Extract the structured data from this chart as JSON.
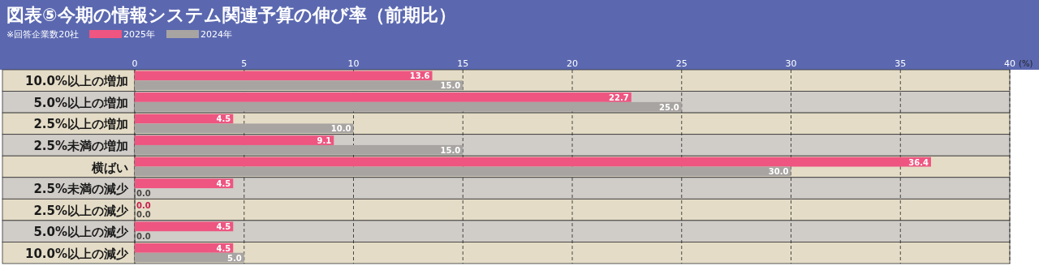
{
  "chart_data": {
    "type": "bar",
    "orientation": "horizontal",
    "title": "図表⑤今期の情報システム関連予算の伸び率（前期比）",
    "subtitle": "※回答企業数20社",
    "xlabel": "(%)",
    "categories": [
      "10.0%以上の増加",
      "5.0%以上の増加",
      "2.5%以上の増加",
      "2.5%未満の増加",
      "横ばい",
      "2.5%未満の減少",
      "2.5%以上の減少",
      "5.0%以上の減少",
      "10.0%以上の減少"
    ],
    "series": [
      {
        "name": "2025年",
        "color": "#ee5580",
        "values": [
          13.6,
          22.7,
          4.5,
          9.1,
          36.4,
          4.5,
          0.0,
          4.5,
          4.5
        ],
        "value_labels": [
          "13.6",
          "22.7",
          "4.5",
          "9.1",
          "36.4",
          "4.5",
          "0.0",
          "4.5",
          "4.5"
        ]
      },
      {
        "name": "2024年",
        "color": "#a8a4a2",
        "values": [
          15.0,
          25.0,
          10.0,
          15.0,
          30.0,
          0.0,
          0.0,
          0.0,
          5.0
        ],
        "value_labels": [
          "15.0",
          "25.0",
          "10.0",
          "15.0",
          "30.0",
          "0.0",
          "0.0",
          "0.0",
          "5.0"
        ]
      }
    ],
    "xlim": [
      0,
      40
    ],
    "xticks": [
      0,
      5,
      10,
      15,
      20,
      25,
      30,
      35,
      40
    ],
    "grid": "x",
    "legend": "top left"
  }
}
